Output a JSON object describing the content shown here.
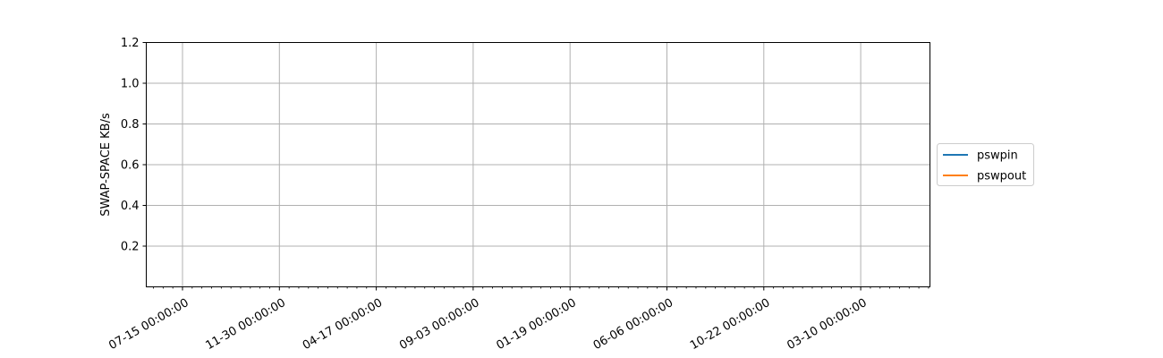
{
  "chart_data": {
    "type": "line",
    "title": "",
    "xlabel": "",
    "ylabel": "SWAP-SPACE KB/s",
    "ylim": [
      0,
      1.2
    ],
    "yticks": [
      0.2,
      0.4,
      0.6,
      0.8,
      1.0,
      1.2
    ],
    "ytick_labels": [
      "0.2",
      "0.4",
      "0.6",
      "0.8",
      "1.0",
      "1.2"
    ],
    "xtick_labels": [
      "07-15 00:00:00",
      "11-30 00:00:00",
      "04-17 00:00:00",
      "09-03 00:00:00",
      "01-19 00:00:00",
      "06-06 00:00:00",
      "10-22 00:00:00",
      "03-10 00:00:00"
    ],
    "grid": true,
    "legend_position": "right",
    "series": [
      {
        "name": "pswpin",
        "color": "#1f77b4",
        "values": []
      },
      {
        "name": "pswpout",
        "color": "#ff7f0e",
        "values": []
      }
    ]
  }
}
